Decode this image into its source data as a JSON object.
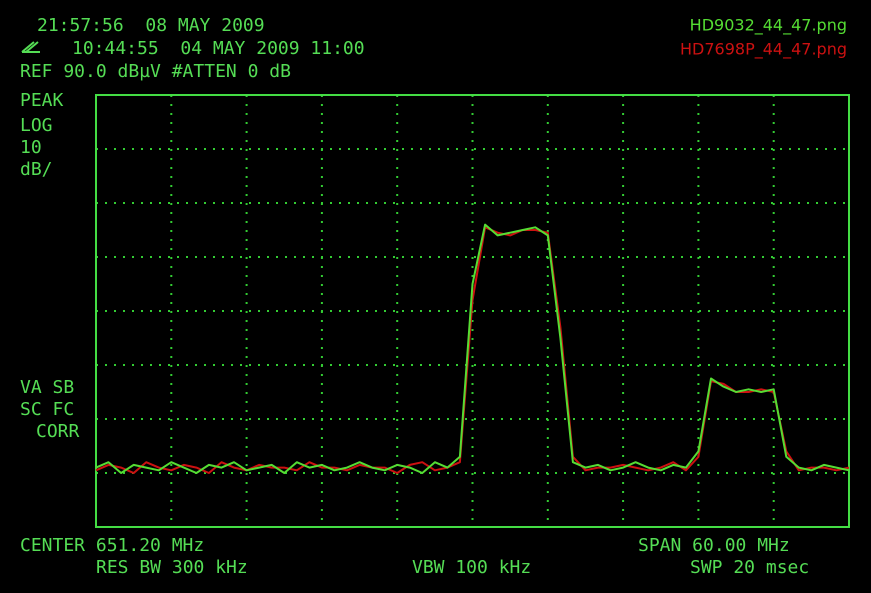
{
  "chart_data": {
    "type": "line",
    "annotations": [
      "21:57:56  08 MAY 2009",
      "10:44:55  04 MAY 2009 11:00",
      "REF 90.0 dBµV #ATTEN 0 dB",
      "PEAK",
      "LOG",
      "10",
      "dB/",
      "VA SB",
      "SC FC",
      "CORR",
      "CENTER 651.20 MHz",
      "SPAN 60.00 MHz",
      "RES BW 300 kHz",
      "VBW 100 kHz",
      "SWP 20 msec"
    ],
    "x": [
      621.2,
      622.2,
      623.2,
      624.2,
      625.2,
      626.2,
      627.2,
      628.2,
      629.2,
      630.2,
      631.2,
      632.2,
      633.2,
      634.2,
      635.2,
      636.2,
      637.2,
      638.2,
      639.2,
      640.2,
      641.2,
      642.2,
      643.2,
      644.2,
      645.2,
      646.2,
      647.2,
      648.2,
      649.2,
      650.2,
      651.2,
      652.2,
      653.2,
      654.2,
      655.2,
      656.2,
      657.2,
      658.2,
      659.2,
      660.2,
      661.2,
      662.2,
      663.2,
      664.2,
      665.2,
      666.2,
      667.2,
      668.2,
      669.2,
      670.2,
      671.2,
      672.2,
      673.2,
      674.2,
      675.2,
      676.2,
      677.2,
      678.2,
      679.2,
      680.2,
      681.2
    ],
    "series": [
      {
        "name": "HD9032_44_47.png",
        "color": "#55dd33",
        "values": [
          21,
          22,
          20,
          21.5,
          21,
          20.5,
          22,
          21,
          20,
          21.5,
          21,
          22,
          20.5,
          21,
          21.5,
          20,
          22,
          21,
          21.5,
          20.5,
          21,
          22,
          21,
          20.5,
          21.5,
          21,
          20,
          22,
          21,
          23,
          55,
          66,
          64,
          64.5,
          65,
          65.5,
          64,
          45,
          22,
          21,
          21.5,
          20.5,
          21,
          22,
          21,
          20.5,
          21.5,
          21,
          24,
          37.5,
          36,
          35,
          35.5,
          35,
          35.5,
          23,
          21,
          20.5,
          21.5,
          21,
          20.5
        ]
      },
      {
        "name": "HD7698P_44_47.png",
        "color": "#cc1111",
        "values": [
          20.5,
          21.5,
          21,
          20,
          22,
          21,
          20.5,
          21.5,
          21,
          20,
          22,
          21,
          20.5,
          21.5,
          21,
          21,
          20.5,
          22,
          21,
          21,
          20.5,
          21.5,
          21,
          21,
          20,
          21.5,
          22,
          20.5,
          21,
          22,
          52,
          65.5,
          64.5,
          64,
          65,
          65,
          64.5,
          47,
          23,
          20.5,
          21,
          21,
          21.5,
          21,
          20.5,
          21,
          22,
          20.5,
          23,
          37,
          36.5,
          35,
          35,
          35.5,
          35,
          24,
          20.5,
          21,
          21,
          20.5,
          21
        ]
      }
    ],
    "xlim": [
      621.2,
      681.2
    ],
    "ylim": [
      10,
      90
    ],
    "xticks": [
      621.2,
      627.2,
      633.2,
      639.2,
      645.2,
      651.2,
      657.2,
      663.2,
      669.2,
      675.2,
      681.2
    ],
    "yticks": [
      10,
      20,
      30,
      40,
      50,
      60,
      70,
      80,
      90
    ],
    "grid": true,
    "grid_color": "#33cc33",
    "frame_color": "#44dd44"
  }
}
